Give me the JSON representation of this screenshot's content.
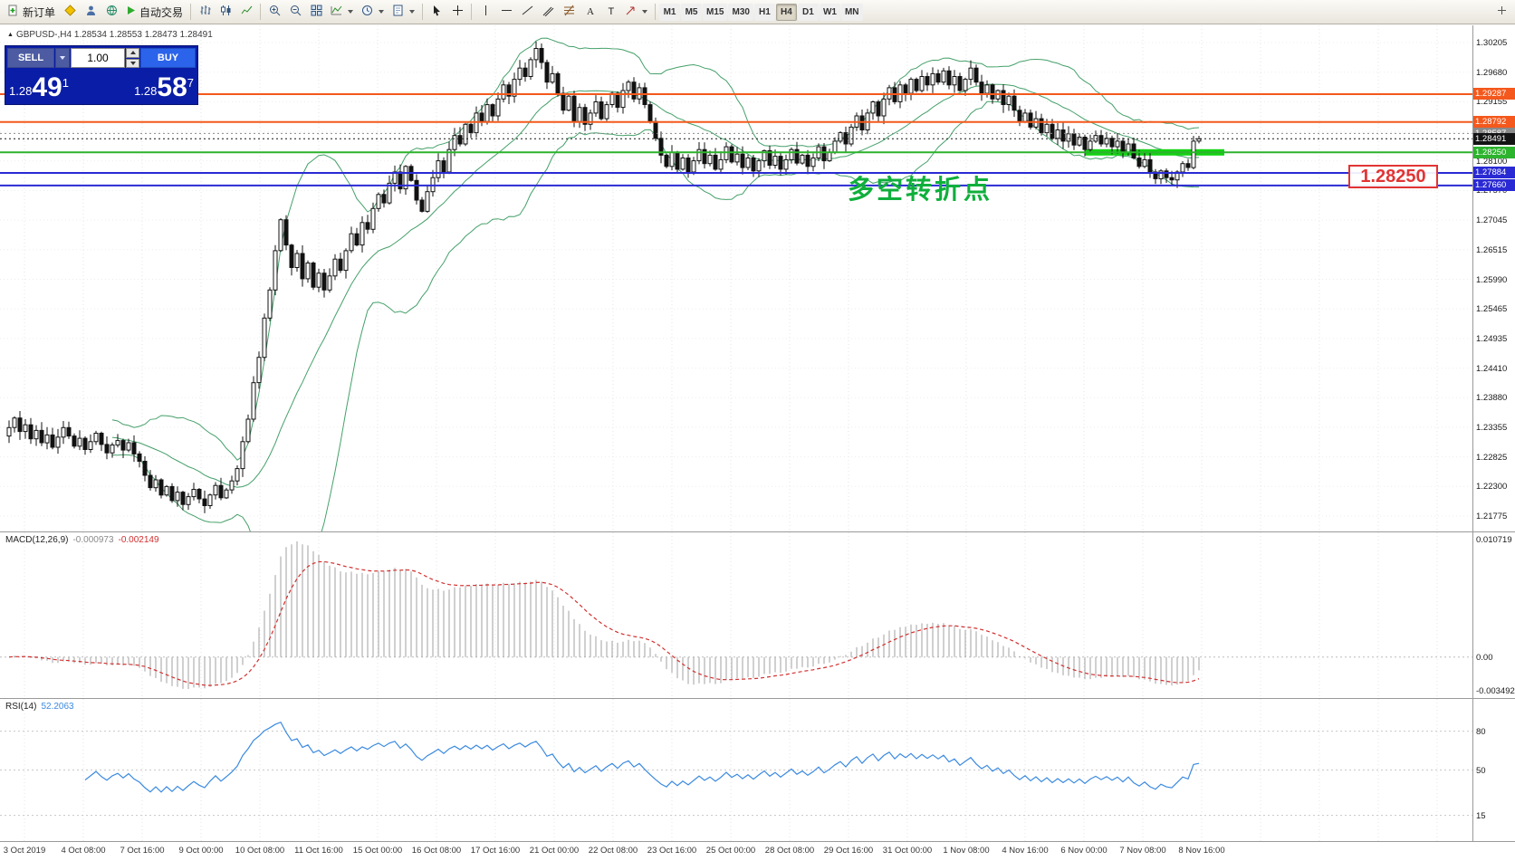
{
  "toolbar": {
    "new_order_label": "新订单",
    "auto_trading_label": "自动交易",
    "timeframes": [
      "M1",
      "M5",
      "M15",
      "M30",
      "H1",
      "H4",
      "D1",
      "W1",
      "MN"
    ],
    "active_timeframe": "H4"
  },
  "trade_panel": {
    "sell_label": "SELL",
    "buy_label": "BUY",
    "volume": "1.00",
    "sell_price": {
      "stem": "1.28",
      "big": "49",
      "sup": "1"
    },
    "buy_price": {
      "stem": "1.28",
      "big": "58",
      "sup": "7"
    }
  },
  "chart": {
    "title": "GBPUSD-,H4 1.28534 1.28553 1.28473 1.28491",
    "annotation": "多空转折点",
    "price_box_label": "1.28250",
    "levels": [
      {
        "price": 1.29287,
        "label": "1.29287",
        "color": "#f4581c"
      },
      {
        "price": 1.28792,
        "label": "1.28792",
        "color": "#f4581c"
      },
      {
        "price": 1.2825,
        "label": "1.28250",
        "color": "#2db32d"
      },
      {
        "price": 1.27884,
        "label": "1.27884",
        "color": "#2a2ad4"
      },
      {
        "price": 1.2766,
        "label": "1.27660",
        "color": "#2a2ad4"
      }
    ],
    "ask": {
      "price": 1.28587,
      "label": "1.28587",
      "color": "#8a8a8a"
    },
    "bid": {
      "price": 1.28491,
      "label": "1.28491",
      "color": "#141414"
    },
    "highlight": {
      "price": 1.2825,
      "color": "#12d312"
    }
  },
  "chart_data": {
    "type": "candlestick",
    "symbol": "GBPUSD-",
    "timeframe": "H4",
    "current_bar": {
      "open": 1.28534,
      "high": 1.28553,
      "low": 1.28473,
      "close": 1.28491
    },
    "price_max": 1.30205,
    "price_min": 1.21775,
    "price_axis_ticks": [
      "1.30205",
      "1.29680",
      "1.29155",
      "1.28625",
      "1.28100",
      "1.27570",
      "1.27045",
      "1.26515",
      "1.25990",
      "1.25465",
      "1.24935",
      "1.24410",
      "1.23880",
      "1.23355",
      "1.22825",
      "1.22300",
      "1.21775"
    ],
    "closes": [
      1.2335,
      1.2352,
      1.2328,
      1.234,
      1.2315,
      1.233,
      1.2308,
      1.2322,
      1.23,
      1.2318,
      1.2335,
      1.232,
      1.2302,
      1.2316,
      1.2296,
      1.231,
      1.2325,
      1.2305,
      1.229,
      1.2304,
      1.2312,
      1.2295,
      1.2308,
      1.2288,
      1.2275,
      1.225,
      1.2228,
      1.2242,
      1.2215,
      1.223,
      1.2205,
      1.222,
      1.2198,
      1.2212,
      1.2225,
      1.2208,
      1.2196,
      1.2215,
      1.2232,
      1.221,
      1.2224,
      1.224,
      1.2262,
      1.231,
      1.235,
      1.2415,
      1.246,
      1.253,
      1.258,
      1.265,
      1.2705,
      1.266,
      1.262,
      1.2645,
      1.26,
      1.2628,
      1.2585,
      1.261,
      1.258,
      1.2605,
      1.2635,
      1.2615,
      1.265,
      1.268,
      1.266,
      1.27,
      1.2688,
      1.2725,
      1.275,
      1.2735,
      1.277,
      1.279,
      1.276,
      1.28,
      1.2775,
      1.274,
      1.272,
      1.2755,
      1.278,
      1.281,
      1.279,
      1.283,
      1.2855,
      1.284,
      1.2875,
      1.286,
      1.2895,
      1.288,
      1.291,
      1.289,
      1.292,
      1.2945,
      1.2925,
      1.2955,
      1.2975,
      1.296,
      1.299,
      1.301,
      1.2985,
      1.295,
      1.2965,
      1.293,
      1.29,
      1.2925,
      1.288,
      1.2905,
      1.2875,
      1.2895,
      1.2915,
      1.2885,
      1.291,
      1.293,
      1.2905,
      1.2935,
      1.295,
      1.292,
      1.294,
      1.291,
      1.288,
      1.285,
      1.282,
      1.28,
      1.2825,
      1.2795,
      1.2815,
      1.279,
      1.281,
      1.283,
      1.2805,
      1.282,
      1.2795,
      1.2812,
      1.2835,
      1.2808,
      1.2822,
      1.2798,
      1.2815,
      1.2792,
      1.281,
      1.2828,
      1.2802,
      1.2818,
      1.2795,
      1.2812,
      1.283,
      1.2806,
      1.282,
      1.28,
      1.2815,
      1.2835,
      1.281,
      1.2825,
      1.2845,
      1.286,
      1.284,
      1.287,
      1.289,
      1.2865,
      1.2895,
      1.2915,
      1.289,
      1.292,
      1.294,
      1.2915,
      1.2945,
      1.293,
      1.2955,
      1.2935,
      1.296,
      1.2945,
      1.2965,
      1.295,
      1.297,
      1.2945,
      1.296,
      1.2935,
      1.2955,
      1.2975,
      1.295,
      1.293,
      1.2945,
      1.292,
      1.2935,
      1.291,
      1.2925,
      1.29,
      1.288,
      1.2895,
      1.287,
      1.2885,
      1.286,
      1.2875,
      1.285,
      1.2865,
      1.2845,
      1.2858,
      1.2838,
      1.2852,
      1.283,
      1.2845,
      1.2855,
      1.284,
      1.285,
      1.2835,
      1.2845,
      1.2825,
      1.284,
      1.2815,
      1.28,
      1.2812,
      1.279,
      1.2778,
      1.2792,
      1.278,
      1.2776,
      1.279,
      1.2805,
      1.2798,
      1.2845,
      1.28491
    ],
    "bollinger": {
      "period": 20,
      "deviations": 2,
      "color": "#45a06a"
    },
    "indicators": [
      {
        "name": "MACD",
        "label": "MACD(12,26,9)",
        "value_main": "-0.000973",
        "value_signal": "-0.002149",
        "fast": 12,
        "slow": 26,
        "signal": 9,
        "axis_labels": [
          "0.010719",
          "0.00",
          "-0.003492"
        ],
        "histogram_color": "#a0a0a0",
        "signal_color": "#d23030"
      },
      {
        "name": "RSI",
        "label": "RSI(14)",
        "value": "52.2063",
        "period": 14,
        "levels": [
          80,
          50,
          15
        ],
        "line_color": "#3b8ae0"
      }
    ]
  },
  "time_axis": {
    "labels": [
      "3 Oct 2019",
      "4 Oct 08:00",
      "7 Oct 16:00",
      "9 Oct 00:00",
      "10 Oct 08:00",
      "11 Oct 16:00",
      "15 Oct 00:00",
      "16 Oct 08:00",
      "17 Oct 16:00",
      "21 Oct 00:00",
      "22 Oct 08:00",
      "23 Oct 16:00",
      "25 Oct 00:00",
      "28 Oct 08:00",
      "29 Oct 16:00",
      "31 Oct 00:00",
      "1 Nov 08:00",
      "4 Nov 16:00",
      "6 Nov 00:00",
      "7 Nov 08:00",
      "8 Nov 16:00"
    ]
  }
}
